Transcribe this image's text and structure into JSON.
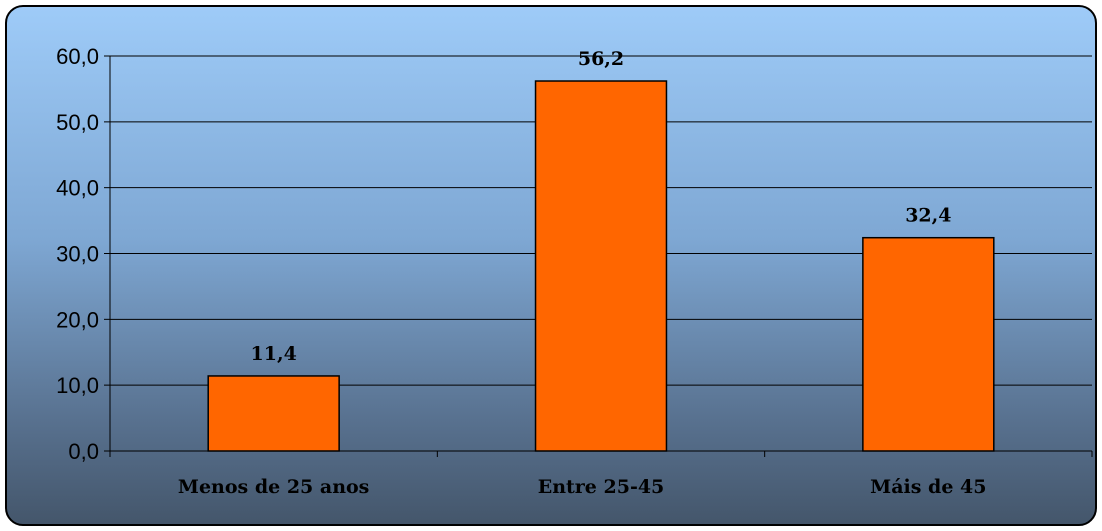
{
  "chart_data": {
    "type": "bar",
    "categories": [
      "Menos de 25 anos",
      "Entre 25-45",
      "Máis de 45"
    ],
    "values": [
      11.4,
      56.2,
      32.4
    ],
    "data_labels": [
      "11,4",
      "56,2",
      "32,4"
    ],
    "yticks": [
      "0,0",
      "10,0",
      "20,0",
      "30,0",
      "40,0",
      "50,0",
      "60,0"
    ],
    "ylim": [
      0,
      60
    ],
    "title": "",
    "xlabel": "",
    "ylabel": "",
    "grid": true,
    "legend": "none",
    "colors": {
      "bar": "#ff6600",
      "background_top": "#9ecbf8",
      "background_bottom": "#44566b",
      "gridline": "#000000"
    }
  }
}
